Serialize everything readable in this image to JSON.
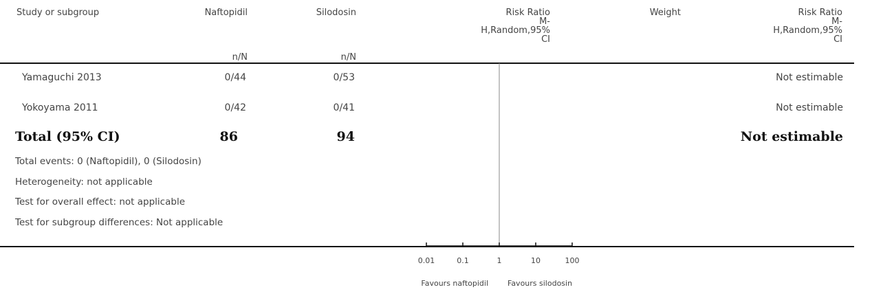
{
  "headers": {
    "study": "Study or subgroup",
    "exp": "Naftopidil",
    "ctrl": "Silodosin",
    "rr_plot": [
      "Risk Ratio",
      "M-",
      "H,Random,95%",
      "CI"
    ],
    "weight": "Weight",
    "rr_value": [
      "Risk Ratio",
      "M-",
      "H,Random,95%",
      "CI"
    ],
    "exp_sub": "n/N",
    "ctrl_sub": "n/N"
  },
  "rows": [
    {
      "study": "Yamaguchi 2013",
      "exp": "0/44",
      "ctrl": "0/53",
      "weight": "",
      "rr": "Not estimable"
    },
    {
      "study": "Yokoyama 2011",
      "exp": "0/42",
      "ctrl": "0/41",
      "weight": "",
      "rr": "Not estimable"
    }
  ],
  "total": {
    "label": "Total (95% CI)",
    "exp": "86",
    "ctrl": "94",
    "rr": "Not estimable"
  },
  "notes": [
    "Total events: 0 (Naftopidil), 0 (Silodosin)",
    "Heterogeneity: not applicable",
    "Test for overall effect: not applicable",
    "Test for subgroup differences: Not applicable"
  ],
  "chart_data": {
    "type": "forest",
    "scale": "log",
    "xlim": [
      0.01,
      100
    ],
    "ticks": [
      {
        "value": 0.01,
        "label": "0.01"
      },
      {
        "value": 0.1,
        "label": "0.1"
      },
      {
        "value": 1,
        "label": "1"
      },
      {
        "value": 10,
        "label": "10"
      },
      {
        "value": 100,
        "label": "100"
      }
    ],
    "null_line": 1,
    "studies": [
      {
        "name": "Yamaguchi 2013",
        "estimate": null
      },
      {
        "name": "Yokoyama 2011",
        "estimate": null
      }
    ],
    "favours_left": "Favours naftopidil",
    "favours_right": "Favours silodosin"
  }
}
